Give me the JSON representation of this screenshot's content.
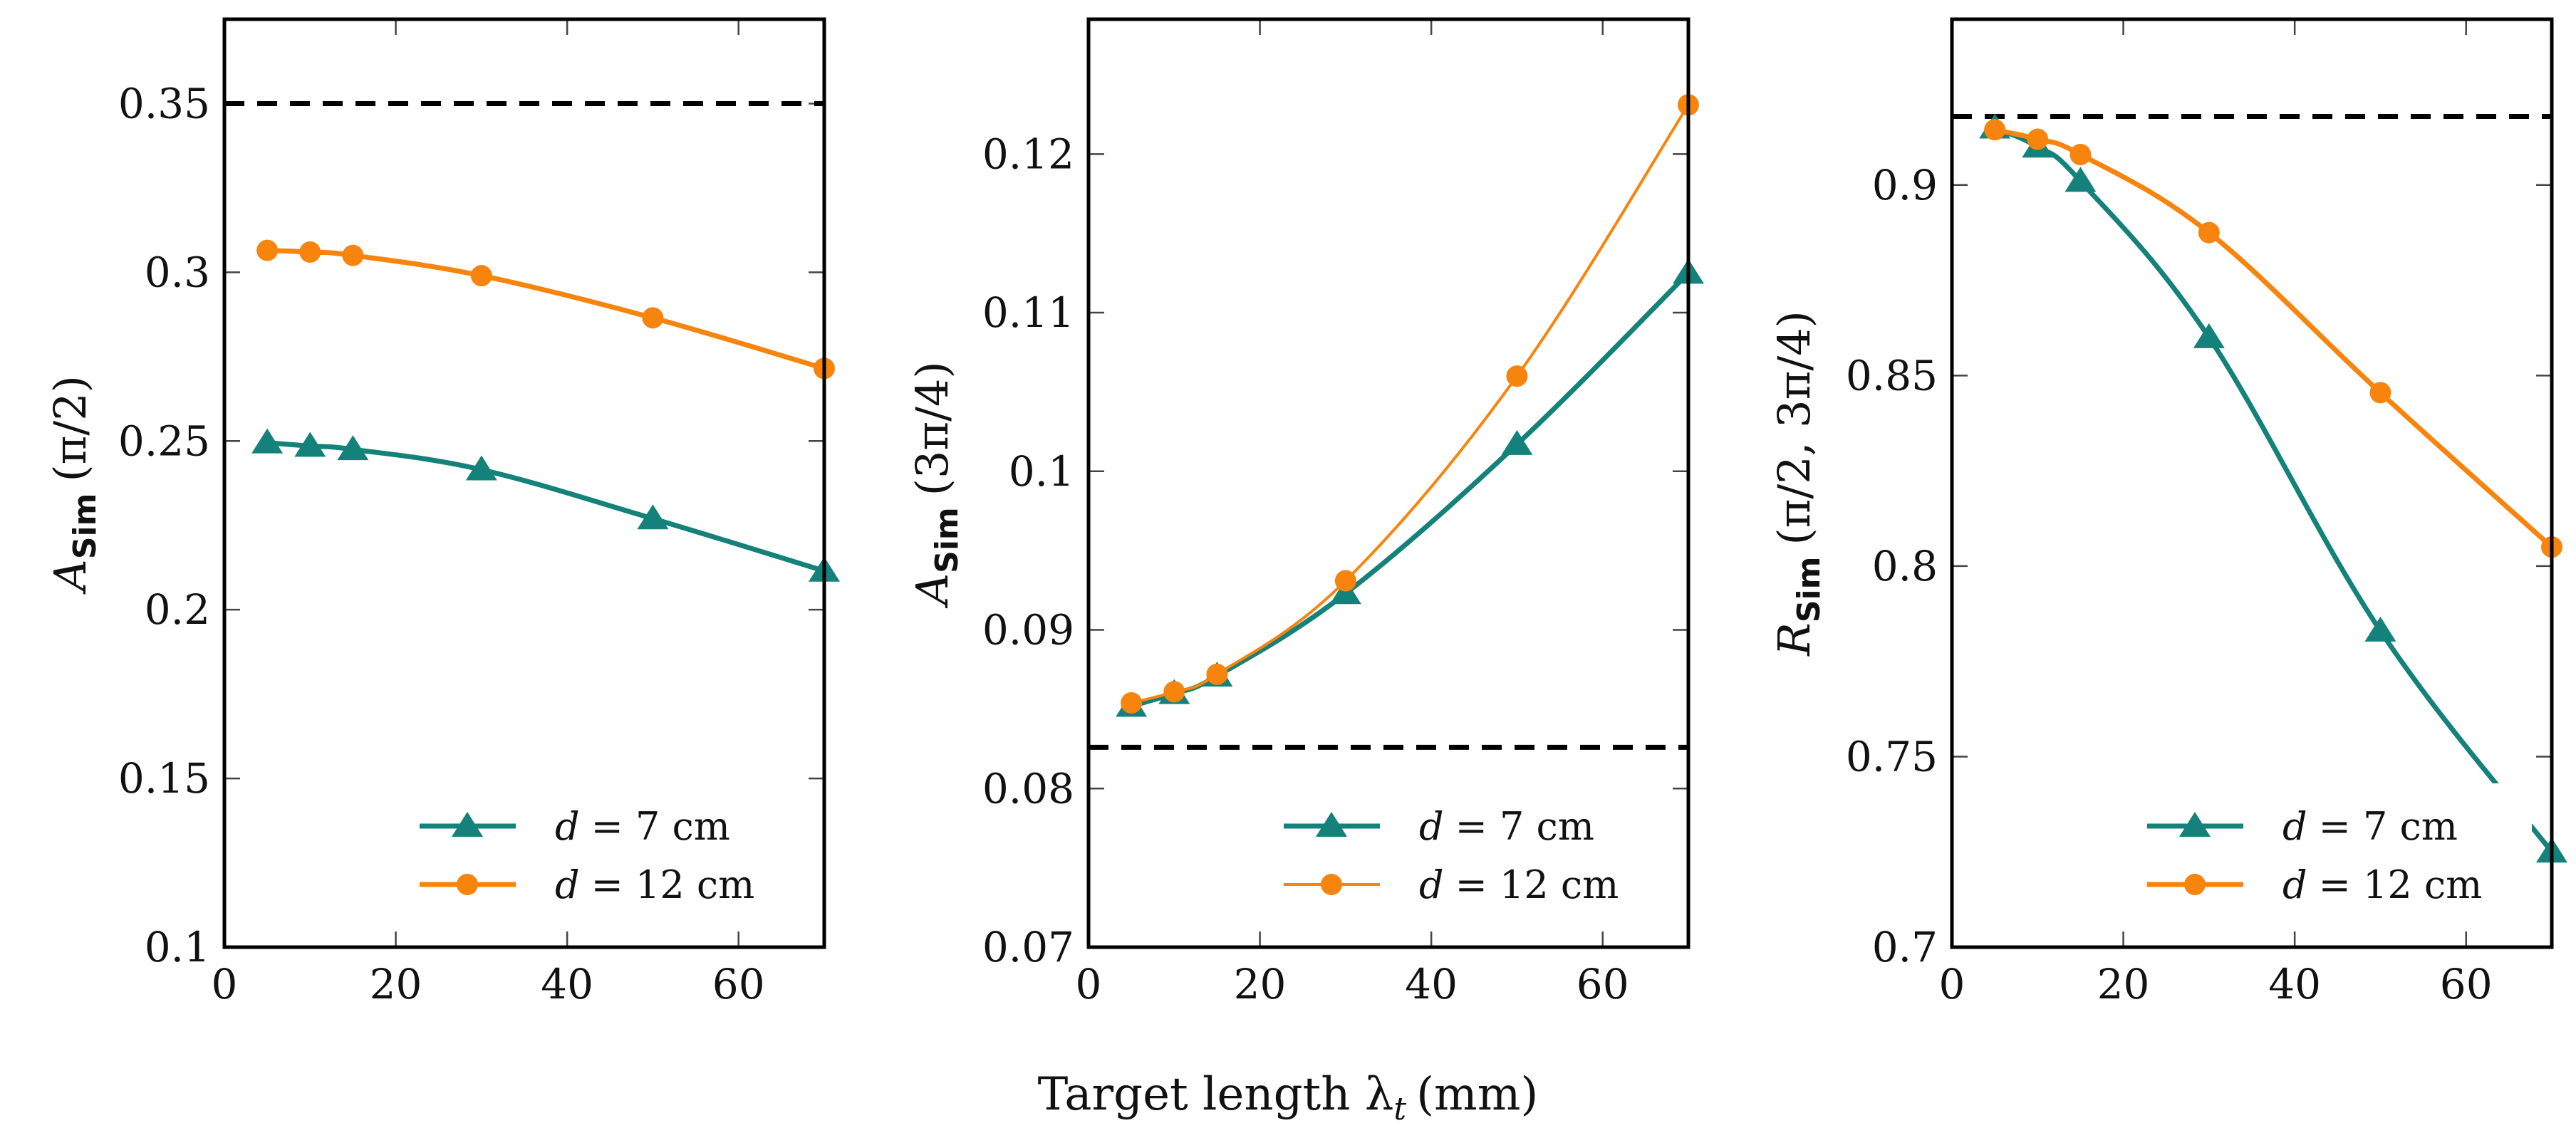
{
  "figure": {
    "xlabel": "Target length λ",
    "xlabel_sub": "t",
    "xlabel_unit": "(mm)"
  },
  "colors": {
    "teal": "#14827a",
    "orange": "#f7840d",
    "reference": "#000000"
  },
  "chart_data": [
    {
      "type": "line",
      "ylabel": {
        "prefix": "A",
        "sub": "Sim",
        "arg": "(π/2)"
      },
      "x": [
        5,
        10,
        15,
        30,
        50,
        70
      ],
      "xlim": [
        0,
        70
      ],
      "ylim": [
        0.1,
        0.375
      ],
      "xticks": [
        0,
        20,
        40,
        60
      ],
      "yticks": [
        0.1,
        0.15,
        0.2,
        0.25,
        0.3,
        0.35
      ],
      "ytick_labels": [
        "0.1",
        "0.15",
        "0.2",
        "0.25",
        "0.3",
        "0.35"
      ],
      "reference_line": 0.35,
      "legend_position": "bottom-right",
      "series": [
        {
          "name": "d = 7 cm",
          "legend_lhs": "d",
          "legend_rhs": "= 7 cm",
          "marker": "triangle",
          "color": "#14827a",
          "values": [
            0.2495,
            0.2485,
            0.2475,
            0.2415,
            0.227,
            0.2115
          ]
        },
        {
          "name": "d = 12 cm",
          "legend_lhs": "d",
          "legend_rhs": "= 12 cm",
          "marker": "circle",
          "color": "#f7840d",
          "values": [
            0.3065,
            0.306,
            0.305,
            0.299,
            0.2865,
            0.2715
          ]
        }
      ]
    },
    {
      "type": "line",
      "ylabel": {
        "prefix": "A",
        "sub": "Sim",
        "arg": "(3π/4)"
      },
      "x": [
        5,
        10,
        15,
        30,
        50,
        70
      ],
      "xlim": [
        0,
        70
      ],
      "ylim": [
        0.07,
        0.1285
      ],
      "xticks": [
        0,
        20,
        40,
        60
      ],
      "yticks": [
        0.07,
        0.08,
        0.09,
        0.1,
        0.11,
        0.12
      ],
      "ytick_labels": [
        "0.07",
        "0.08",
        "0.09",
        "0.1",
        "0.11",
        "0.12"
      ],
      "reference_line": 0.0826,
      "legend_position": "bottom-right",
      "series": [
        {
          "name": "d = 7 cm",
          "legend_lhs": "d",
          "legend_rhs": "= 7 cm",
          "marker": "triangle",
          "color": "#14827a",
          "values": [
            0.0852,
            0.086,
            0.0871,
            0.0923,
            0.1017,
            0.1125
          ]
        },
        {
          "name": "d = 12 cm",
          "legend_lhs": "d",
          "legend_rhs": "= 12 cm",
          "marker": "circle",
          "color": "#f7840d",
          "values": [
            0.0854,
            0.0861,
            0.0872,
            0.0931,
            0.106,
            0.1231
          ]
        }
      ]
    },
    {
      "type": "line",
      "ylabel": {
        "prefix": "R",
        "sub": "Sim",
        "arg": "(π/2, 3π/4)"
      },
      "x": [
        5,
        10,
        15,
        30,
        50,
        70
      ],
      "xlim": [
        0,
        70
      ],
      "ylim": [
        0.7,
        0.9435
      ],
      "xticks": [
        0,
        20,
        40,
        60
      ],
      "yticks": [
        0.7,
        0.75,
        0.8,
        0.85,
        0.9
      ],
      "ytick_labels": [
        "0.7",
        "0.75",
        "0.8",
        "0.85",
        "0.9"
      ],
      "reference_line": 0.918,
      "legend_position": "bottom-right",
      "series": [
        {
          "name": "d = 7 cm",
          "legend_lhs": "d",
          "legend_rhs": "= 7 cm",
          "marker": "triangle",
          "color": "#14827a",
          "values": [
            0.915,
            0.91,
            0.901,
            0.86,
            0.783,
            0.725
          ]
        },
        {
          "name": "d = 12 cm",
          "legend_lhs": "d",
          "legend_rhs": "= 12 cm",
          "marker": "circle",
          "color": "#f7840d",
          "values": [
            0.9145,
            0.912,
            0.908,
            0.8875,
            0.8455,
            0.805
          ]
        }
      ]
    }
  ]
}
